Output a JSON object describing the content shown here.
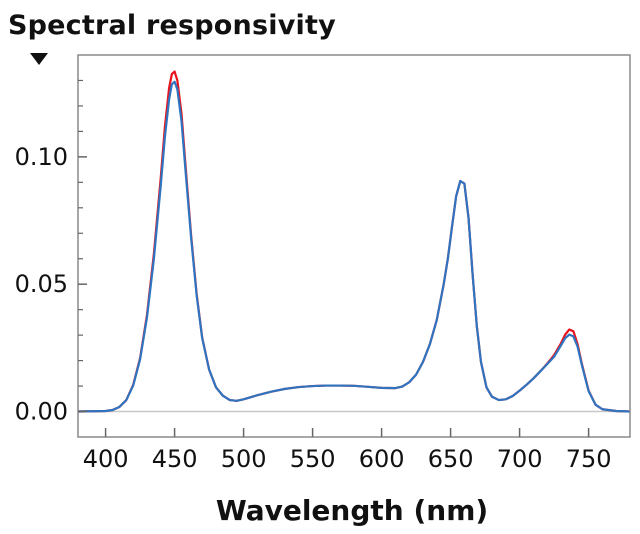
{
  "chart_data": {
    "type": "line",
    "title": "Spectral responsivity",
    "xlabel": "Wavelength (nm)",
    "ylabel": "",
    "xlim": [
      380,
      780
    ],
    "ylim": [
      -0.01,
      0.14
    ],
    "xticks": [
      400,
      450,
      500,
      550,
      600,
      650,
      700,
      750
    ],
    "xtick_labels": [
      "400",
      "450",
      "500",
      "550",
      "600",
      "650",
      "700",
      "750"
    ],
    "yticks": [
      0.0,
      0.05,
      0.1
    ],
    "ytick_labels": [
      "0.00",
      "0.05",
      "0.10"
    ],
    "grid": false,
    "zero_line": true,
    "series": [
      {
        "name": "Red curve",
        "color": "#e8141c",
        "x": [
          380,
          400,
          405,
          410,
          415,
          420,
          425,
          430,
          435,
          440,
          443,
          446,
          448,
          450,
          452,
          455,
          458,
          462,
          466,
          470,
          475,
          480,
          485,
          490,
          495,
          500,
          510,
          520,
          530,
          540,
          550,
          560,
          570,
          580,
          590,
          600,
          610,
          615,
          620,
          625,
          630,
          635,
          640,
          645,
          648,
          651,
          654,
          657,
          660,
          663,
          666,
          669,
          672,
          676,
          680,
          685,
          690,
          695,
          700,
          705,
          710,
          715,
          720,
          725,
          730,
          733,
          736,
          739,
          742,
          745,
          750,
          755,
          760,
          770,
          780
        ],
        "y": [
          0.0,
          0.0002,
          0.0006,
          0.0018,
          0.0045,
          0.0105,
          0.021,
          0.038,
          0.062,
          0.092,
          0.112,
          0.127,
          0.1325,
          0.1335,
          0.13,
          0.117,
          0.096,
          0.069,
          0.046,
          0.029,
          0.0165,
          0.0095,
          0.0062,
          0.0045,
          0.0042,
          0.0048,
          0.0064,
          0.0078,
          0.0089,
          0.0096,
          0.01,
          0.0102,
          0.0102,
          0.0101,
          0.0097,
          0.0093,
          0.0092,
          0.0098,
          0.0115,
          0.0145,
          0.0195,
          0.0265,
          0.036,
          0.05,
          0.06,
          0.0725,
          0.0845,
          0.0905,
          0.0895,
          0.076,
          0.0535,
          0.0335,
          0.0195,
          0.0095,
          0.0058,
          0.0045,
          0.0048,
          0.0061,
          0.0082,
          0.0105,
          0.013,
          0.0158,
          0.0188,
          0.0222,
          0.0268,
          0.0302,
          0.0322,
          0.0315,
          0.0265,
          0.019,
          0.0082,
          0.0027,
          0.0009,
          0.0002,
          0.0
        ]
      },
      {
        "name": "Blue curve",
        "color": "#2f74c0",
        "x": [
          380,
          400,
          405,
          410,
          415,
          420,
          425,
          430,
          435,
          440,
          443,
          446,
          448,
          450,
          452,
          455,
          458,
          462,
          466,
          470,
          475,
          480,
          485,
          490,
          495,
          500,
          510,
          520,
          530,
          540,
          550,
          560,
          570,
          580,
          590,
          600,
          610,
          615,
          620,
          625,
          630,
          635,
          640,
          645,
          648,
          651,
          654,
          657,
          660,
          663,
          666,
          669,
          672,
          676,
          680,
          685,
          690,
          695,
          700,
          705,
          710,
          715,
          720,
          725,
          730,
          733,
          736,
          739,
          742,
          745,
          750,
          755,
          760,
          770,
          780
        ],
        "y": [
          0.0,
          0.0002,
          0.0006,
          0.0018,
          0.0045,
          0.0102,
          0.0205,
          0.037,
          0.06,
          0.089,
          0.108,
          0.1225,
          0.1285,
          0.1295,
          0.1265,
          0.114,
          0.094,
          0.068,
          0.0455,
          0.0288,
          0.0165,
          0.0095,
          0.0062,
          0.0045,
          0.0042,
          0.0048,
          0.0064,
          0.0078,
          0.0089,
          0.0096,
          0.01,
          0.0102,
          0.0102,
          0.0101,
          0.0097,
          0.0093,
          0.0092,
          0.0098,
          0.0115,
          0.0145,
          0.0195,
          0.0265,
          0.036,
          0.05,
          0.06,
          0.0725,
          0.0845,
          0.0905,
          0.0895,
          0.076,
          0.0535,
          0.0335,
          0.0195,
          0.0095,
          0.0058,
          0.0045,
          0.0048,
          0.0061,
          0.0082,
          0.0105,
          0.013,
          0.0158,
          0.0186,
          0.0215,
          0.026,
          0.0288,
          0.0302,
          0.0295,
          0.0255,
          0.0185,
          0.008,
          0.0027,
          0.0009,
          0.0002,
          0.0
        ]
      }
    ]
  },
  "ui": {
    "menu_arrow_icon": "triangle-down-icon"
  }
}
